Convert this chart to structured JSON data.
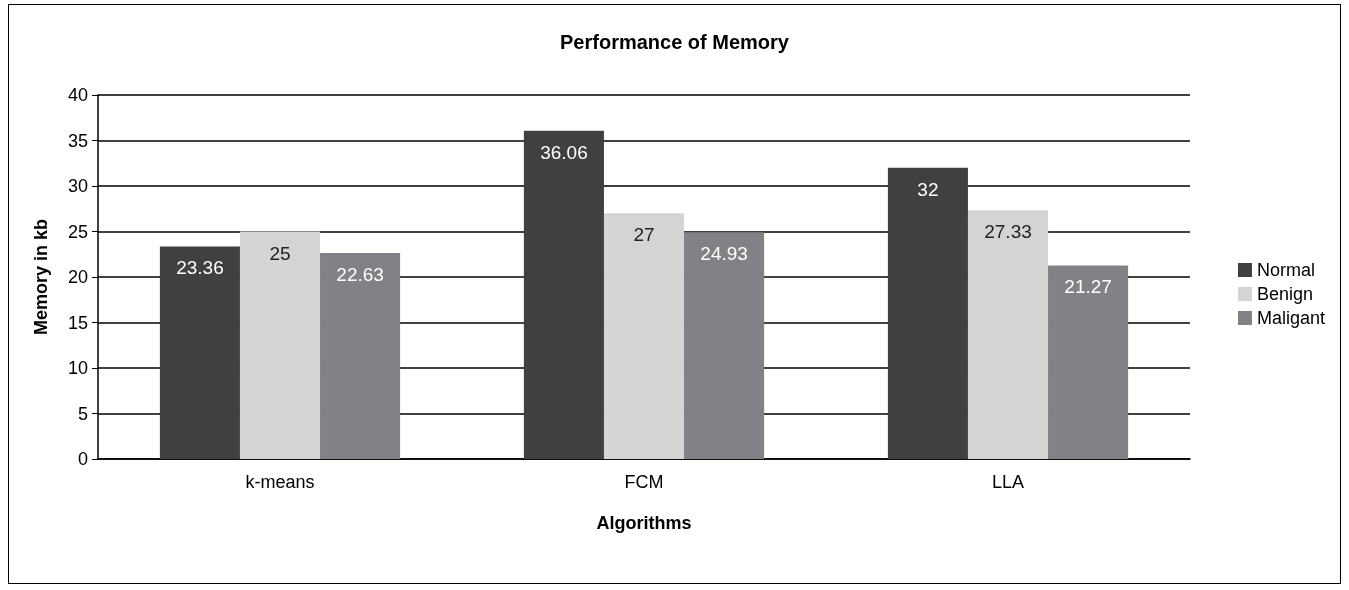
{
  "chart_data": {
    "type": "bar",
    "title": "Performance of Memory",
    "xlabel": "Algorithms",
    "ylabel": "Memory in kb",
    "categories": [
      "k-means",
      "FCM",
      "LLA"
    ],
    "series": [
      {
        "name": "Normal",
        "color": "#404040",
        "values": [
          23.36,
          36.06,
          32
        ]
      },
      {
        "name": "Benign",
        "color": "#d4d4d4",
        "values": [
          25,
          27,
          27.33
        ]
      },
      {
        "name": "Maligant",
        "color": "#808285",
        "values": [
          22.63,
          24.93,
          21.27
        ]
      }
    ],
    "ylim": [
      0,
      40
    ],
    "yticks": [
      0,
      5,
      10,
      15,
      20,
      25,
      30,
      35,
      40
    ],
    "grid": "y",
    "legend": "right",
    "data_labels": true
  }
}
